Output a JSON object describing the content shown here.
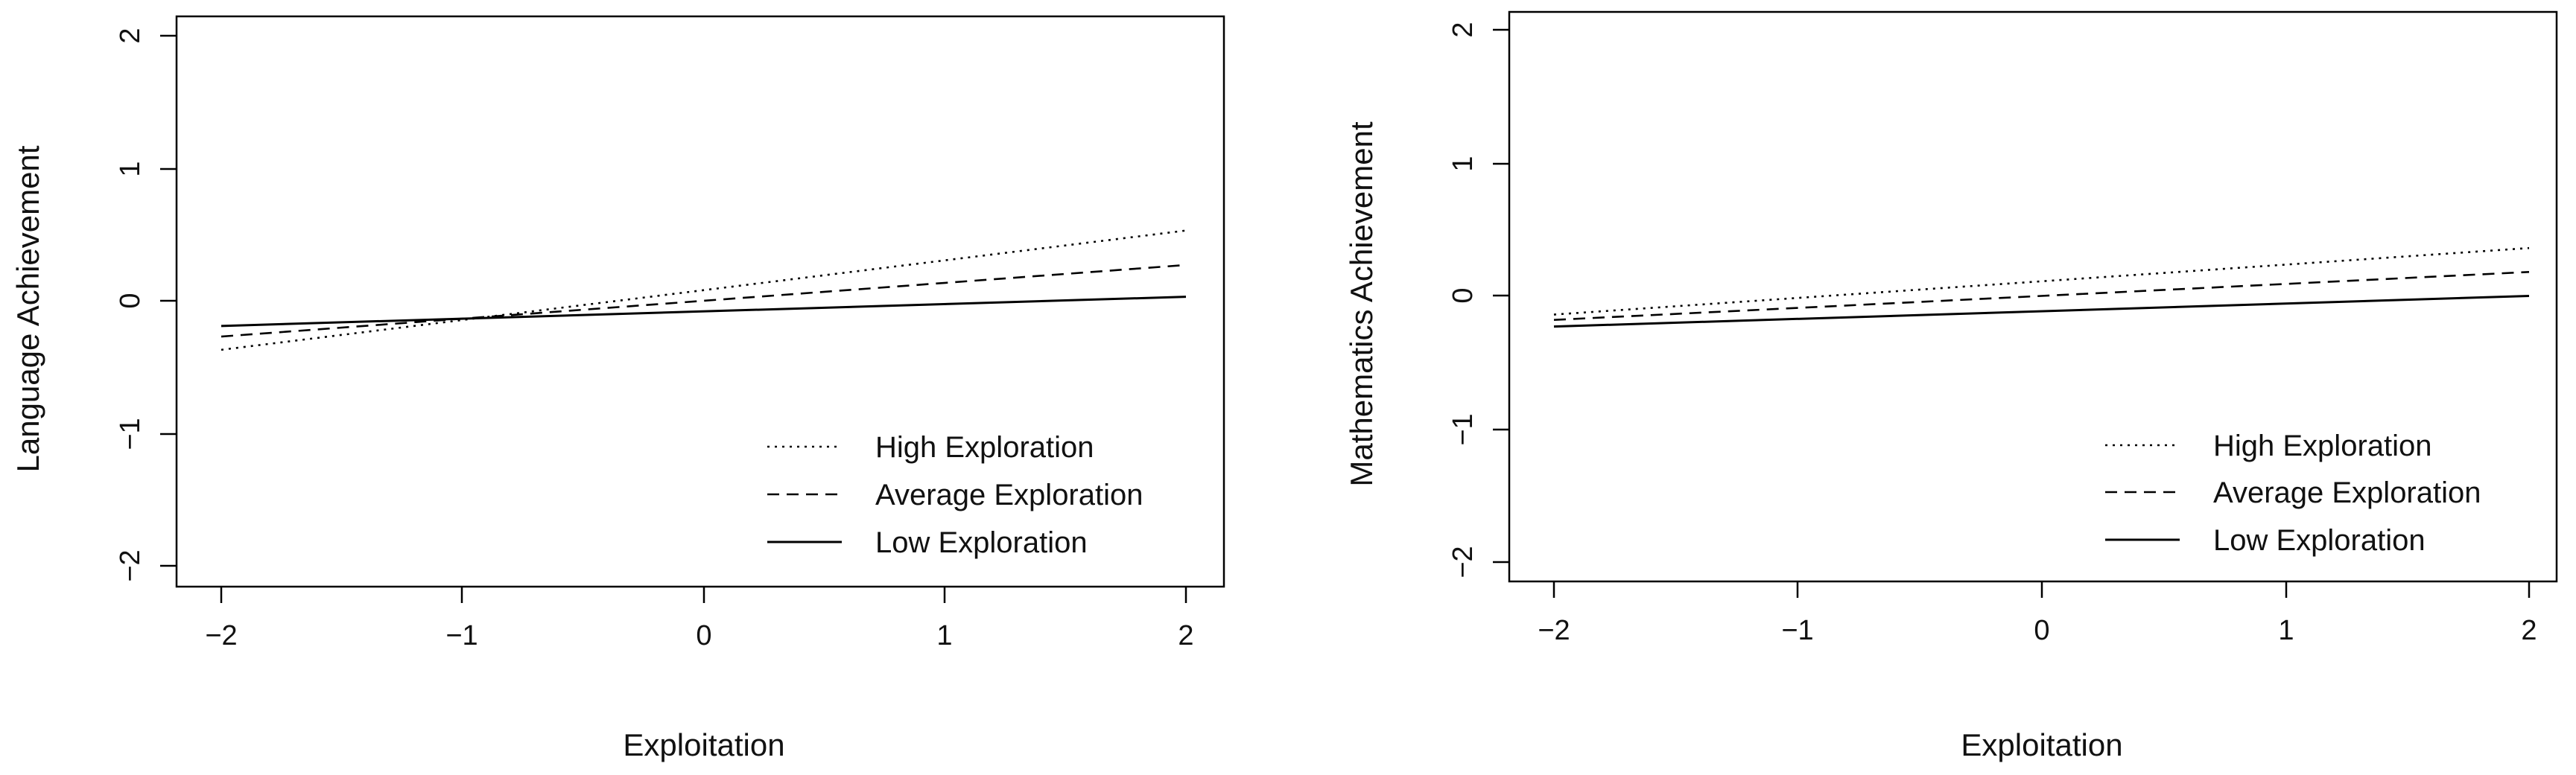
{
  "chart_data": [
    {
      "type": "line",
      "xlabel": "Exploitation",
      "ylabel": "Language Achievement",
      "xlim": [
        -2,
        2
      ],
      "ylim": [
        -2,
        2
      ],
      "xticks": [
        "−2",
        "−1",
        "0",
        "1",
        "2"
      ],
      "yticks": [
        "−2",
        "−1",
        "0",
        "1",
        "2"
      ],
      "grid": false,
      "legend_position": "bottom-right",
      "series": [
        {
          "name": "High Exploration",
          "style": "dotted",
          "x": [
            -2,
            2
          ],
          "y": [
            -0.37,
            0.53
          ]
        },
        {
          "name": "Average Exploration",
          "style": "dashed",
          "x": [
            -2,
            2
          ],
          "y": [
            -0.27,
            0.27
          ]
        },
        {
          "name": "Low Exploration",
          "style": "solid",
          "x": [
            -2,
            2
          ],
          "y": [
            -0.19,
            0.03
          ]
        }
      ]
    },
    {
      "type": "line",
      "xlabel": "Exploitation",
      "ylabel": "Mathematics Achievement",
      "xlim": [
        -2,
        2
      ],
      "ylim": [
        -2,
        2
      ],
      "xticks": [
        "−2",
        "−1",
        "0",
        "1",
        "2"
      ],
      "yticks": [
        "−2",
        "−1",
        "0",
        "1",
        "2"
      ],
      "grid": false,
      "legend_position": "bottom-right",
      "series": [
        {
          "name": "High Exploration",
          "style": "dotted",
          "x": [
            -2,
            2
          ],
          "y": [
            -0.14,
            0.36
          ]
        },
        {
          "name": "Average Exploration",
          "style": "dashed",
          "x": [
            -2,
            2
          ],
          "y": [
            -0.18,
            0.18
          ]
        },
        {
          "name": "Low Exploration",
          "style": "solid",
          "x": [
            -2,
            2
          ],
          "y": [
            -0.23,
            0.0
          ]
        }
      ]
    }
  ]
}
